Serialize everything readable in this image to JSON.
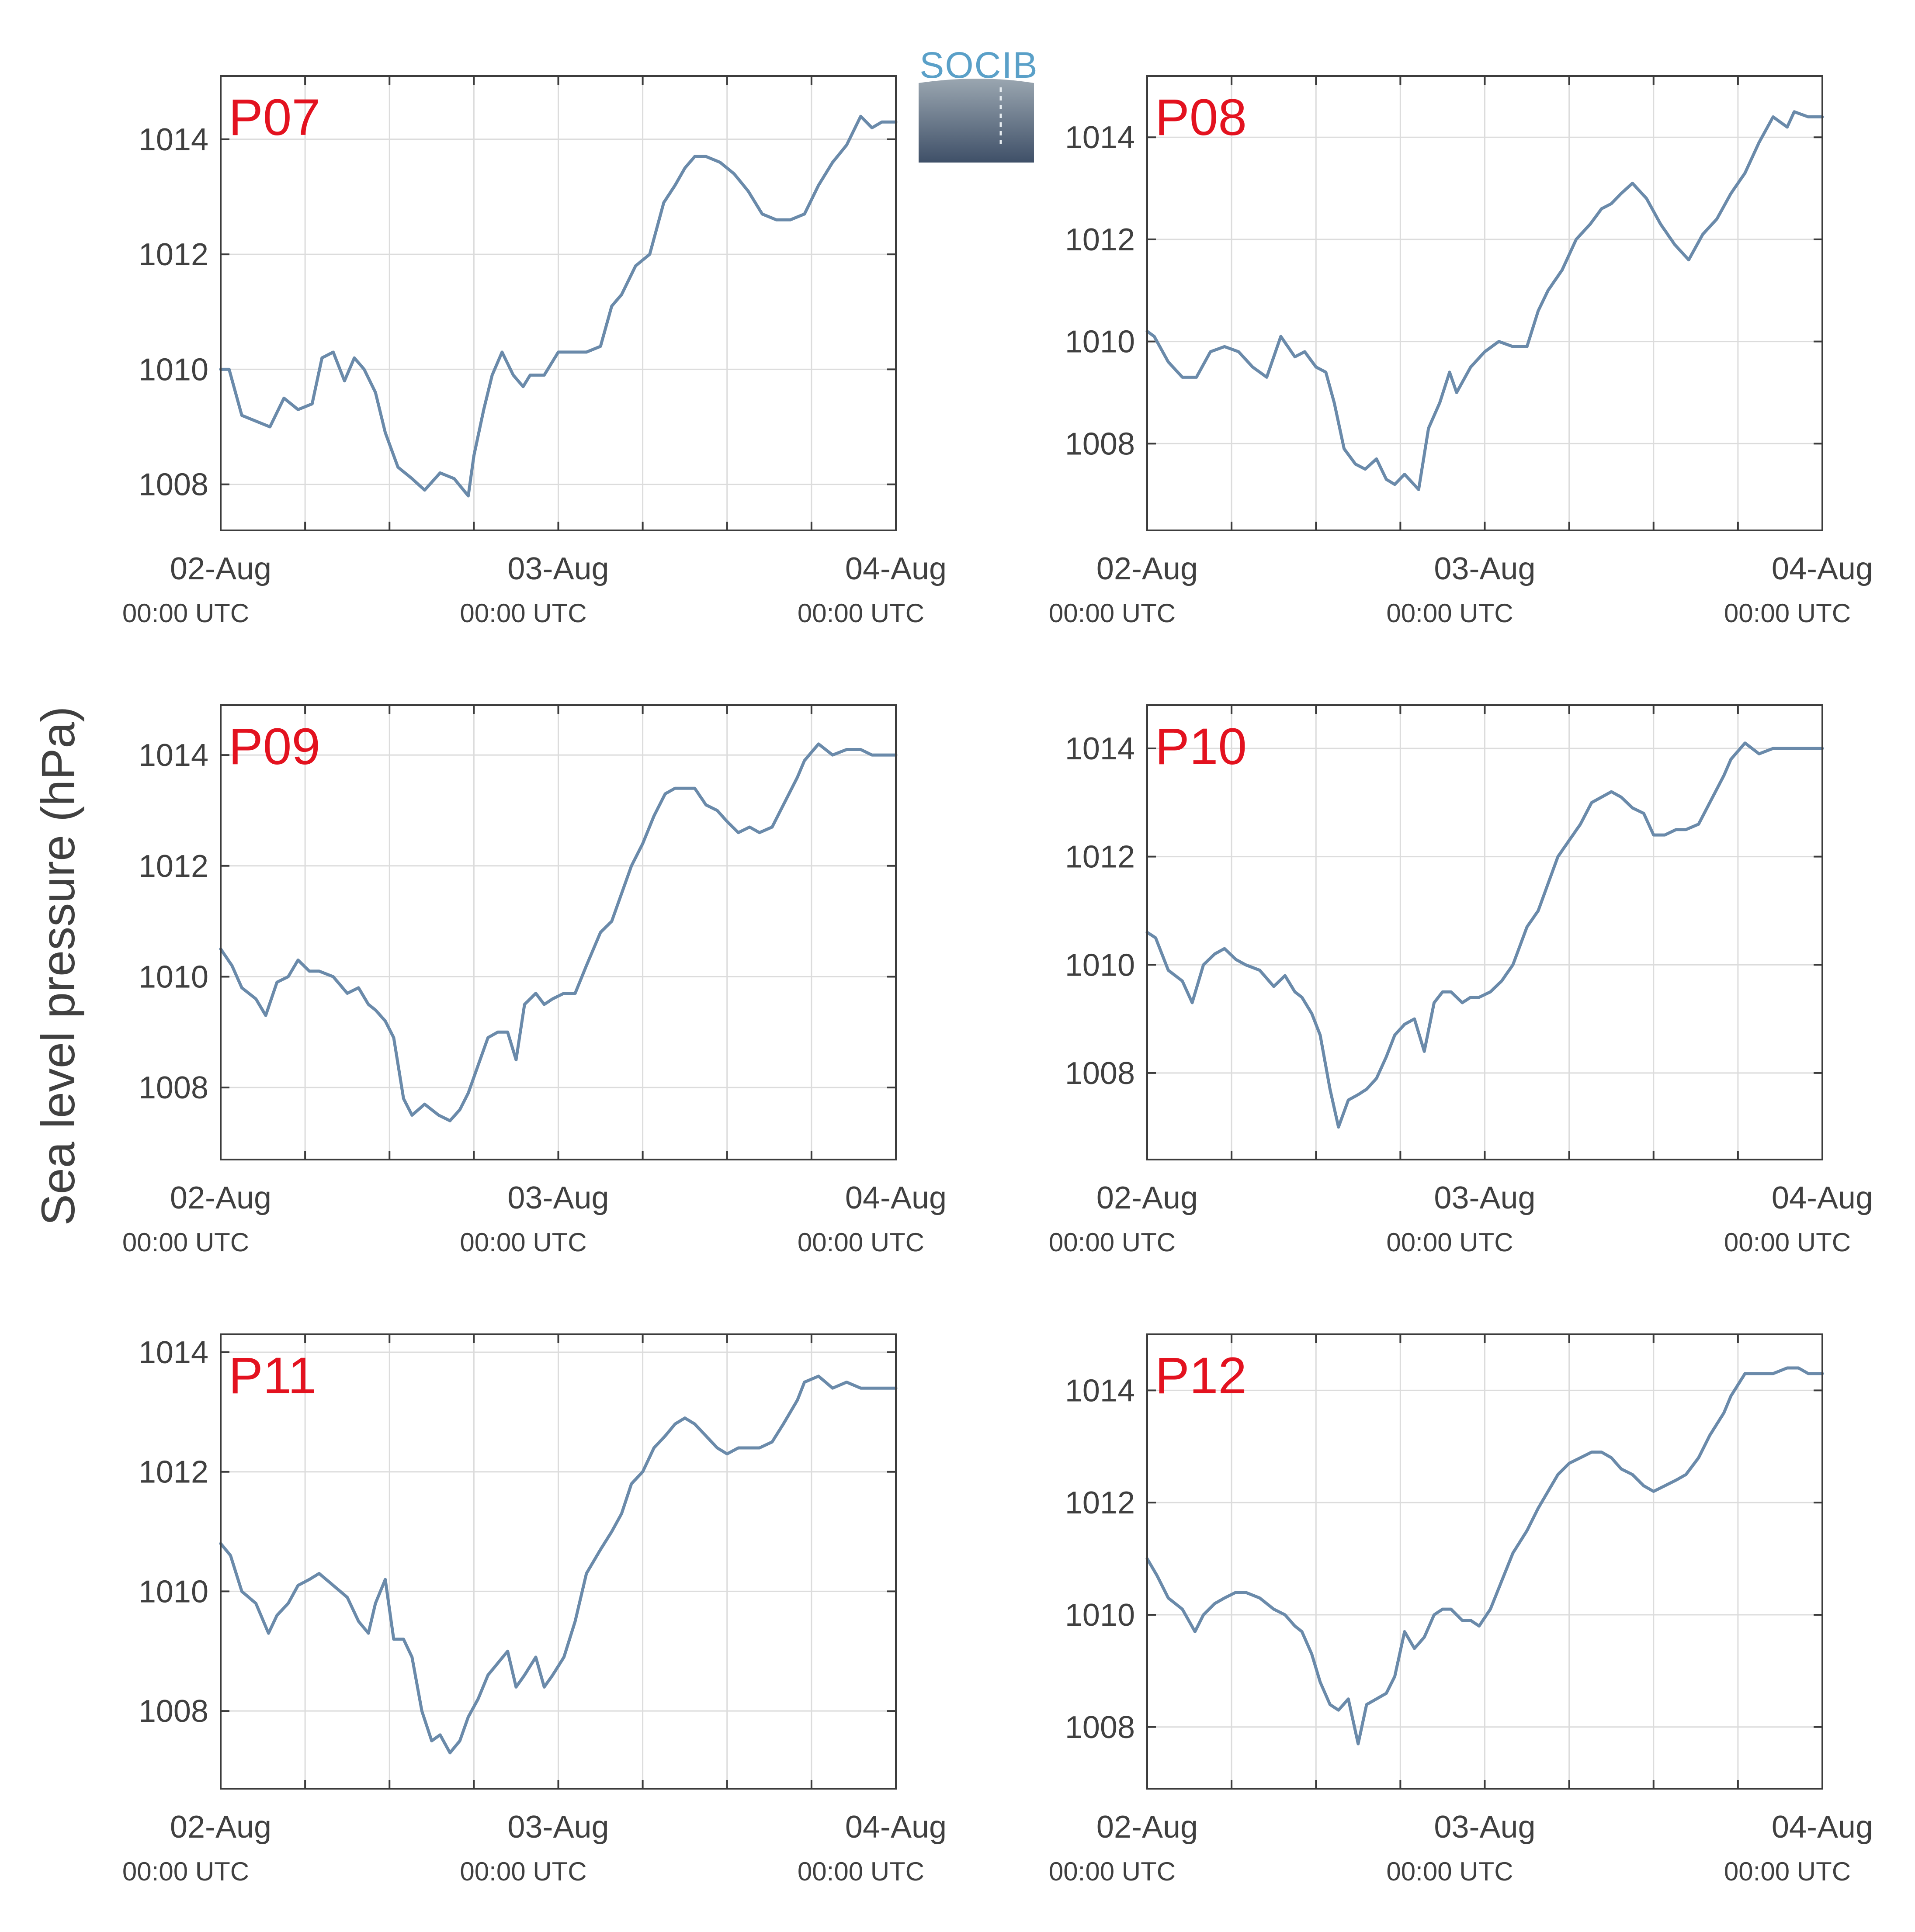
{
  "figure": {
    "ylabel": "Sea level pressure (hPa)",
    "logo_text": "SOCIB"
  },
  "chart_data": [
    {
      "type": "line",
      "panel": "P07",
      "x_ticks": [
        {
          "label": "02-Aug",
          "sub": "00:00 UTC"
        },
        {
          "label": "03-Aug",
          "sub": "00:00 UTC"
        },
        {
          "label": "04-Aug",
          "sub": "00:00 UTC"
        }
      ],
      "xlim": [
        0,
        48
      ],
      "ylim": [
        1007.2,
        1015.1
      ],
      "y_ticks": [
        1008,
        1010,
        1012,
        1014
      ],
      "series": [
        {
          "x": [
            0,
            0.6,
            1.5,
            2.5,
            3.5,
            4.5,
            5.5,
            6.5,
            7.2,
            8,
            8.8,
            9.5,
            10.2,
            11,
            11.7,
            12.6,
            13.6,
            14.5,
            15.6,
            16.6,
            17.6,
            18,
            18.7,
            19.3,
            20,
            20.8,
            21.5,
            22,
            23,
            24,
            24.6,
            25.3,
            26,
            27,
            27.8,
            28.5,
            29.5,
            30.5,
            31.5,
            32.3,
            33,
            33.7,
            34.5,
            35.5,
            36.5,
            37.5,
            38.5,
            39.5,
            40.5,
            41.5,
            42.5,
            43.5,
            44.5,
            45.5,
            46.3,
            47,
            48
          ],
          "y": [
            1010.0,
            1010.0,
            1009.2,
            1009.1,
            1009.0,
            1009.5,
            1009.3,
            1009.4,
            1010.2,
            1010.3,
            1009.8,
            1010.2,
            1010.0,
            1009.6,
            1008.9,
            1008.3,
            1008.1,
            1007.9,
            1008.2,
            1008.1,
            1007.8,
            1008.5,
            1009.3,
            1009.9,
            1010.3,
            1009.9,
            1009.7,
            1009.9,
            1009.9,
            1010.3,
            1010.3,
            1010.3,
            1010.3,
            1010.4,
            1011.1,
            1011.3,
            1011.8,
            1012.0,
            1012.9,
            1013.2,
            1013.5,
            1013.7,
            1013.7,
            1013.6,
            1013.4,
            1013.1,
            1012.7,
            1012.6,
            1012.6,
            1012.7,
            1013.2,
            1013.6,
            1013.9,
            1014.4,
            1014.2,
            1014.3,
            1014.3
          ]
        }
      ]
    },
    {
      "type": "line",
      "panel": "P08",
      "x_ticks": [
        {
          "label": "02-Aug",
          "sub": "00:00 UTC"
        },
        {
          "label": "03-Aug",
          "sub": "00:00 UTC"
        },
        {
          "label": "04-Aug",
          "sub": "00:00 UTC"
        }
      ],
      "xlim": [
        0,
        48
      ],
      "ylim": [
        1006.3,
        1015.2
      ],
      "y_ticks": [
        1008,
        1010,
        1012,
        1014
      ],
      "series": [
        {
          "x": [
            0,
            0.5,
            1.5,
            2.5,
            3.5,
            4.5,
            5.5,
            6.5,
            7.5,
            8.5,
            9.5,
            10.5,
            11.2,
            12,
            12.7,
            13.3,
            14,
            14.8,
            15.5,
            16.3,
            17,
            17.6,
            18.3,
            19.3,
            20,
            20.8,
            21.5,
            22,
            23,
            24,
            25,
            26,
            27,
            27.8,
            28.5,
            29.5,
            30.5,
            31.5,
            32.3,
            33,
            33.7,
            34.5,
            35.5,
            36.5,
            37.5,
            38.5,
            39.5,
            40.5,
            41.5,
            42.5,
            43.5,
            44.5,
            45.5,
            46,
            47,
            48
          ],
          "y": [
            1010.2,
            1010.1,
            1009.6,
            1009.3,
            1009.3,
            1009.8,
            1009.9,
            1009.8,
            1009.5,
            1009.3,
            1010.1,
            1009.7,
            1009.8,
            1009.5,
            1009.4,
            1008.8,
            1007.9,
            1007.6,
            1007.5,
            1007.7,
            1007.3,
            1007.2,
            1007.4,
            1007.1,
            1008.3,
            1008.8,
            1009.4,
            1009.0,
            1009.5,
            1009.8,
            1010.0,
            1009.9,
            1009.9,
            1010.6,
            1011.0,
            1011.4,
            1012.0,
            1012.3,
            1012.6,
            1012.7,
            1012.9,
            1013.1,
            1012.8,
            1012.3,
            1011.9,
            1011.6,
            1012.1,
            1012.4,
            1012.9,
            1013.3,
            1013.9,
            1014.4,
            1014.2,
            1014.5,
            1014.4,
            1014.4
          ]
        }
      ]
    },
    {
      "type": "line",
      "panel": "P09",
      "x_ticks": [
        {
          "label": "02-Aug",
          "sub": "00:00 UTC"
        },
        {
          "label": "03-Aug",
          "sub": "00:00 UTC"
        },
        {
          "label": "04-Aug",
          "sub": "00:00 UTC"
        }
      ],
      "xlim": [
        0,
        48
      ],
      "ylim": [
        1006.7,
        1014.9
      ],
      "y_ticks": [
        1008,
        1010,
        1012,
        1014
      ],
      "series": [
        {
          "x": [
            0,
            0.8,
            1.5,
            2.5,
            3.2,
            4,
            4.8,
            5.5,
            6.3,
            7,
            8,
            9,
            9.8,
            10.5,
            11,
            11.7,
            12.3,
            13,
            13.6,
            14.5,
            15,
            15.5,
            16.3,
            17,
            17.6,
            18.3,
            19,
            19.7,
            20.4,
            21,
            21.6,
            22.4,
            23,
            23.6,
            24.4,
            25.2,
            26,
            27,
            27.8,
            28.5,
            29.2,
            30,
            30.8,
            31.6,
            32.3,
            33,
            33.7,
            34.5,
            35.3,
            36,
            36.8,
            37.6,
            38.3,
            39.2,
            40,
            41,
            41.5,
            42.5,
            43.5,
            44.5,
            45.5,
            46.3,
            47,
            48
          ],
          "y": [
            1010.5,
            1010.2,
            1009.8,
            1009.6,
            1009.3,
            1009.9,
            1010.0,
            1010.3,
            1010.1,
            1010.1,
            1010.0,
            1009.7,
            1009.8,
            1009.5,
            1009.4,
            1009.2,
            1008.9,
            1007.8,
            1007.5,
            1007.7,
            1007.6,
            1007.5,
            1007.4,
            1007.6,
            1007.9,
            1008.4,
            1008.9,
            1009.0,
            1009.0,
            1008.5,
            1009.5,
            1009.7,
            1009.5,
            1009.6,
            1009.7,
            1009.7,
            1010.2,
            1010.8,
            1011.0,
            1011.5,
            1012.0,
            1012.4,
            1012.9,
            1013.3,
            1013.4,
            1013.4,
            1013.4,
            1013.1,
            1013.0,
            1012.8,
            1012.6,
            1012.7,
            1012.6,
            1012.7,
            1013.1,
            1013.6,
            1013.9,
            1014.2,
            1014.0,
            1014.1,
            1014.1,
            1014.0,
            1014.0,
            1014.0
          ]
        }
      ]
    },
    {
      "type": "line",
      "panel": "P10",
      "x_ticks": [
        {
          "label": "02-Aug",
          "sub": "00:00 UTC"
        },
        {
          "label": "03-Aug",
          "sub": "00:00 UTC"
        },
        {
          "label": "04-Aug",
          "sub": "00:00 UTC"
        }
      ],
      "xlim": [
        0,
        48
      ],
      "ylim": [
        1006.4,
        1014.8
      ],
      "y_ticks": [
        1008,
        1010,
        1012,
        1014
      ],
      "series": [
        {
          "x": [
            0,
            0.6,
            1.5,
            2.5,
            3.2,
            4,
            4.8,
            5.5,
            6.3,
            7,
            8,
            9,
            9.8,
            10.5,
            11,
            11.7,
            12.3,
            13,
            13.6,
            14.3,
            15,
            15.6,
            16.3,
            17,
            17.6,
            18.3,
            19,
            19.7,
            20.4,
            21,
            21.6,
            22.4,
            23,
            23.6,
            24.4,
            25.2,
            26,
            27,
            27.8,
            28.5,
            29.2,
            30,
            30.8,
            31.6,
            32.3,
            33,
            33.7,
            34.5,
            35.3,
            36,
            36.8,
            37.6,
            38.3,
            39.2,
            40,
            41,
            41.5,
            42.5,
            43.5,
            44.5,
            45.5,
            46.3,
            47,
            48
          ],
          "y": [
            1010.6,
            1010.5,
            1009.9,
            1009.7,
            1009.3,
            1010.0,
            1010.2,
            1010.3,
            1010.1,
            1010.0,
            1009.9,
            1009.6,
            1009.8,
            1009.5,
            1009.4,
            1009.1,
            1008.7,
            1007.7,
            1007.0,
            1007.5,
            1007.6,
            1007.7,
            1007.9,
            1008.3,
            1008.7,
            1008.9,
            1009.0,
            1008.4,
            1009.3,
            1009.5,
            1009.5,
            1009.3,
            1009.4,
            1009.4,
            1009.5,
            1009.7,
            1010.0,
            1010.7,
            1011.0,
            1011.5,
            1012.0,
            1012.3,
            1012.6,
            1013.0,
            1013.1,
            1013.2,
            1013.1,
            1012.9,
            1012.8,
            1012.4,
            1012.4,
            1012.5,
            1012.5,
            1012.6,
            1013.0,
            1013.5,
            1013.8,
            1014.1,
            1013.9,
            1014.0,
            1014.0,
            1014.0,
            1014.0,
            1014.0
          ]
        }
      ]
    },
    {
      "type": "line",
      "panel": "P11",
      "x_ticks": [
        {
          "label": "02-Aug",
          "sub": "00:00 UTC"
        },
        {
          "label": "03-Aug",
          "sub": "00:00 UTC"
        },
        {
          "label": "04-Aug",
          "sub": "00:00 UTC"
        }
      ],
      "xlim": [
        0,
        48
      ],
      "ylim": [
        1006.7,
        1014.3
      ],
      "y_ticks": [
        1008,
        1010,
        1012,
        1014
      ],
      "series": [
        {
          "x": [
            0,
            0.7,
            1.5,
            2.5,
            3.4,
            4,
            4.8,
            5.5,
            6.3,
            7,
            8,
            9,
            9.8,
            10.5,
            11,
            11.7,
            12.3,
            13,
            13.6,
            14.3,
            15,
            15.6,
            16.3,
            17,
            17.6,
            18.3,
            19,
            19.7,
            20.4,
            21,
            21.6,
            22.4,
            23,
            23.6,
            24.4,
            25.2,
            26,
            27,
            27.8,
            28.5,
            29.2,
            30,
            30.8,
            31.6,
            32.3,
            33,
            33.7,
            34.5,
            35.3,
            36,
            36.8,
            37.6,
            38.3,
            39.2,
            40,
            41,
            41.5,
            42.5,
            43.5,
            44.5,
            45.5,
            46.3,
            47,
            48
          ],
          "y": [
            1010.8,
            1010.6,
            1010.0,
            1009.8,
            1009.3,
            1009.6,
            1009.8,
            1010.1,
            1010.2,
            1010.3,
            1010.1,
            1009.9,
            1009.5,
            1009.3,
            1009.8,
            1010.2,
            1009.2,
            1009.2,
            1008.9,
            1008.0,
            1007.5,
            1007.6,
            1007.3,
            1007.5,
            1007.9,
            1008.2,
            1008.6,
            1008.8,
            1009.0,
            1008.4,
            1008.6,
            1008.9,
            1008.4,
            1008.6,
            1008.9,
            1009.5,
            1010.3,
            1010.7,
            1011.0,
            1011.3,
            1011.8,
            1012.0,
            1012.4,
            1012.6,
            1012.8,
            1012.9,
            1012.8,
            1012.6,
            1012.4,
            1012.3,
            1012.4,
            1012.4,
            1012.4,
            1012.5,
            1012.8,
            1013.2,
            1013.5,
            1013.6,
            1013.4,
            1013.5,
            1013.4,
            1013.4,
            1013.4,
            1013.4
          ]
        }
      ]
    },
    {
      "type": "line",
      "panel": "P12",
      "x_ticks": [
        {
          "label": "02-Aug",
          "sub": "00:00 UTC"
        },
        {
          "label": "03-Aug",
          "sub": "00:00 UTC"
        },
        {
          "label": "04-Aug",
          "sub": "00:00 UTC"
        }
      ],
      "xlim": [
        0,
        48
      ],
      "ylim": [
        1006.9,
        1015.0
      ],
      "y_ticks": [
        1008,
        1010,
        1012,
        1014
      ],
      "series": [
        {
          "x": [
            0,
            0.7,
            1.5,
            2.5,
            3.4,
            4,
            4.8,
            5.5,
            6.3,
            7,
            8,
            9,
            9.8,
            10.5,
            11,
            11.7,
            12.3,
            13,
            13.6,
            14.3,
            15,
            15.6,
            16.3,
            17,
            17.6,
            18.3,
            19,
            19.7,
            20.4,
            21,
            21.6,
            22.4,
            23,
            23.6,
            24.4,
            25.2,
            26,
            27,
            27.8,
            28.5,
            29.2,
            30,
            30.8,
            31.6,
            32.3,
            33,
            33.7,
            34.5,
            35.3,
            36,
            36.8,
            37.6,
            38.3,
            39.2,
            40,
            41,
            41.5,
            42.5,
            43.5,
            44.5,
            45.5,
            46.3,
            47,
            48
          ],
          "y": [
            1011.0,
            1010.7,
            1010.3,
            1010.1,
            1009.7,
            1010.0,
            1010.2,
            1010.3,
            1010.4,
            1010.4,
            1010.3,
            1010.1,
            1010.0,
            1009.8,
            1009.7,
            1009.3,
            1008.8,
            1008.4,
            1008.3,
            1008.5,
            1007.7,
            1008.4,
            1008.5,
            1008.6,
            1008.9,
            1009.7,
            1009.4,
            1009.6,
            1010.0,
            1010.1,
            1010.1,
            1009.9,
            1009.9,
            1009.8,
            1010.1,
            1010.6,
            1011.1,
            1011.5,
            1011.9,
            1012.2,
            1012.5,
            1012.7,
            1012.8,
            1012.9,
            1012.9,
            1012.8,
            1012.6,
            1012.5,
            1012.3,
            1012.2,
            1012.3,
            1012.4,
            1012.5,
            1012.8,
            1013.2,
            1013.6,
            1013.9,
            1014.3,
            1014.3,
            1014.3,
            1014.4,
            1014.4,
            1014.3,
            1014.3
          ]
        }
      ]
    }
  ]
}
